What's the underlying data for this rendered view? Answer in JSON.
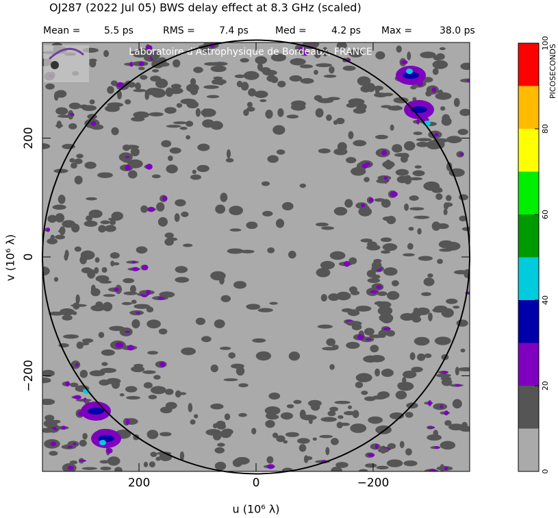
{
  "chart_data": {
    "type": "uvmap",
    "title": "OJ287  (2022 Jul 05)   BWS delay effect at  8.3 GHz (scaled)",
    "stats": [
      {
        "label": "Mean =",
        "value": "5.5 ps"
      },
      {
        "label": "RMS =",
        "value": "7.4 ps"
      },
      {
        "label": "Med =",
        "value": "4.2 ps"
      },
      {
        "label": "Max =",
        "value": "38.0 ps"
      }
    ],
    "watermark": "Laboratoire d'Astrophysique de Bordeaux, FRANCE",
    "xlabel": "u  (10⁶ λ)",
    "ylabel": "v  (10⁶ λ)",
    "xlim": [
      365,
      -365
    ],
    "ylim": [
      -361,
      361
    ],
    "xticks": [
      200,
      0,
      {
        "value": -200,
        "label": "−200"
      }
    ],
    "yticks": [
      {
        "value": -200,
        "label": "−200"
      },
      0,
      200
    ],
    "circle_radius": 365,
    "background_color": "#aaaaaa",
    "colorbar": {
      "label": "PICOSECONDS",
      "levels": [
        0,
        10,
        20,
        30,
        40,
        50,
        60,
        70,
        80,
        90,
        100
      ],
      "colors": [
        "#aaaaaa",
        "#555555",
        "#7f00bf",
        "#0000aa",
        "#00ccdd",
        "#009900",
        "#00ee00",
        "#ffff00",
        "#ffbb00",
        "#ff0000"
      ],
      "ticks": [
        0,
        20,
        40,
        60,
        80,
        100
      ]
    }
  }
}
